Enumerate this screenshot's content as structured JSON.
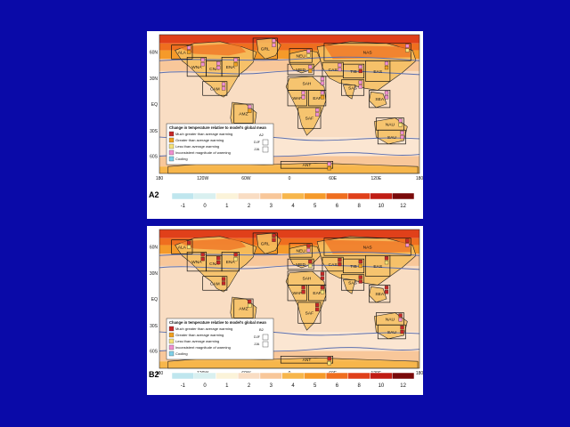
{
  "maps": [
    {
      "id": "A2",
      "scenario_label": "A2",
      "lat_labels": [
        "60N",
        "30N",
        "EQ",
        "30S",
        "60S"
      ],
      "lon_labels": [
        "180",
        "120W",
        "60W",
        "0",
        "60E",
        "120E",
        "180"
      ],
      "regions": [
        "NAS",
        "CAS",
        "EAS",
        "SAS",
        "SEA",
        "TIB",
        "SAH",
        "WAF",
        "EAF",
        "SAF",
        "AMZ",
        "CAM",
        "WNA",
        "CNA",
        "ENA",
        "ALA",
        "GRL",
        "NEU",
        "MED",
        "SSA",
        "NAU",
        "SAU",
        "ANT"
      ],
      "legend": {
        "title": "Change in temperature relative to model's global mean",
        "items": [
          {
            "label": "Much greater than average warming",
            "color": "#c62828"
          },
          {
            "label": "Greater than average warming",
            "color": "#f0a020"
          },
          {
            "label": "Less than average warming",
            "color": "#f5e27a"
          },
          {
            "label": "Inconsistent magnitude of warming",
            "color": "#f090d0"
          },
          {
            "label": "Cooling",
            "color": "#7fd0e8"
          }
        ],
        "key_title": "A2",
        "key_rows": [
          "DJF",
          "JJA"
        ]
      },
      "colorbar_labels": [
        "-1",
        "0",
        "1",
        "2",
        "3",
        "4",
        "5",
        "6",
        "8",
        "10",
        "12"
      ]
    },
    {
      "id": "B2",
      "scenario_label": "B2",
      "lat_labels": [
        "60N",
        "30N",
        "EQ",
        "30S",
        "60S"
      ],
      "lon_labels": [
        "180",
        "120W",
        "60W",
        "0",
        "60E",
        "120E",
        "180"
      ],
      "regions": [
        "NAS",
        "CAS",
        "EAS",
        "SAS",
        "SEA",
        "TIB",
        "SAH",
        "WAF",
        "EAF",
        "SAF",
        "AMZ",
        "CAM",
        "WNA",
        "CNA",
        "ENA",
        "ALA",
        "GRL",
        "NEU",
        "MED",
        "SSA",
        "NAU",
        "SAU",
        "ANT"
      ],
      "legend": {
        "title": "Change in temperature relative to model's global mean",
        "items": [
          {
            "label": "Much greater than average warming",
            "color": "#c62828"
          },
          {
            "label": "Greater than average warming",
            "color": "#f0a020"
          },
          {
            "label": "Less than average warming",
            "color": "#f5e27a"
          },
          {
            "label": "Inconsistent magnitude of warming",
            "color": "#f090d0"
          },
          {
            "label": "Cooling",
            "color": "#7fd0e8"
          }
        ],
        "key_title": "B2",
        "key_rows": [
          "DJF",
          "JJA"
        ]
      },
      "colorbar_labels": [
        "-1",
        "0",
        "1",
        "2",
        "3",
        "4",
        "5",
        "6",
        "8",
        "10",
        "12"
      ]
    }
  ],
  "colorbar_colors": [
    "#bfe6ee",
    "#d9f0f0",
    "#fbf3d9",
    "#f9ddc3",
    "#f8c79a",
    "#f7b64b",
    "#f59a2a",
    "#ef6e1f",
    "#e0401a",
    "#c01d14",
    "#7a0a0a"
  ]
}
